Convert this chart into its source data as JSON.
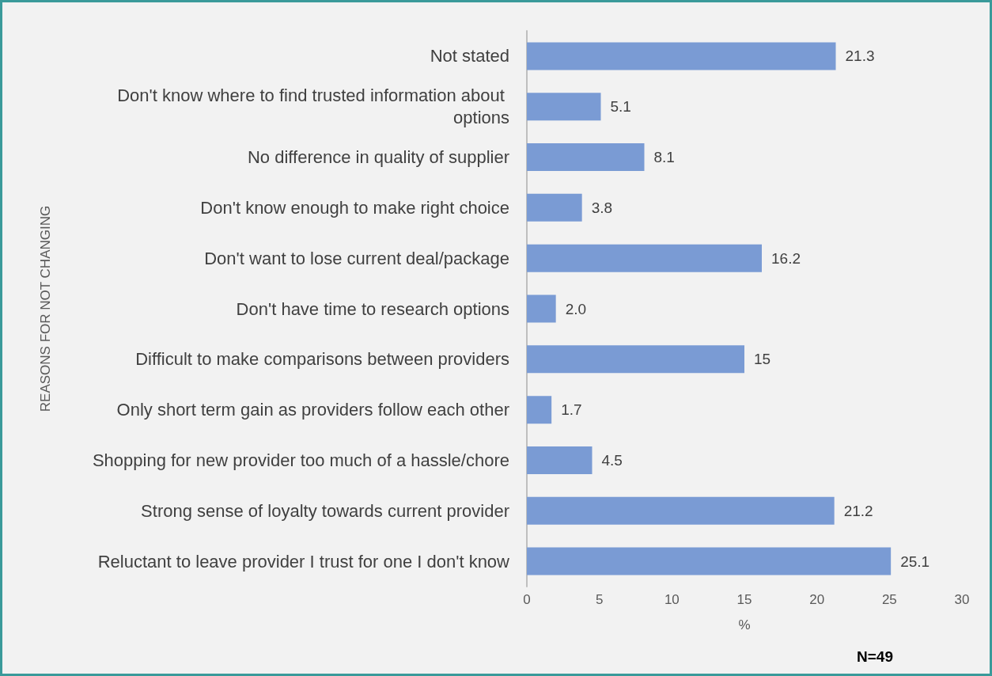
{
  "chart_data": {
    "type": "bar",
    "orientation": "horizontal",
    "xlabel": "%",
    "ylabel": "REASONS FOR NOT CHANGING",
    "categories": [
      "Not stated",
      "Don't know where to find trusted information about options",
      "No difference in quality of supplier",
      "Don't know enough to make right choice",
      "Don't want to lose current deal/package",
      "Don't have time to research options",
      "Difficult to make comparisons between providers",
      "Only short term gain as providers follow each other",
      "Shopping for new provider too much of a hassle/chore",
      "Strong sense of loyalty towards current provider",
      "Reluctant to leave provider I trust for one I don't know"
    ],
    "values": [
      21.3,
      5.1,
      8.1,
      3.8,
      16.2,
      2.0,
      15,
      1.7,
      4.5,
      21.2,
      25.1
    ],
    "value_labels": [
      "21.3",
      "5.1",
      "8.1",
      "3.8",
      "16.2",
      "2.0",
      "15",
      "1.7",
      "4.5",
      "21.2",
      "25.1"
    ],
    "color": "#7a9bd4",
    "xlim": [
      0,
      30
    ],
    "xticks": [
      0,
      5,
      10,
      15,
      20,
      25,
      30
    ],
    "grid": false,
    "annotations": [
      "N=49"
    ]
  }
}
